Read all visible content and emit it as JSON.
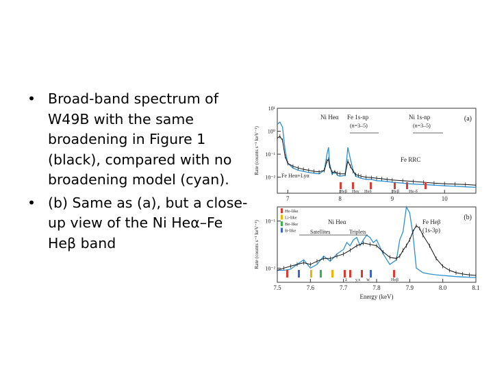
{
  "slide": {
    "bullets": [
      "Broad-band spectrum of W49B with the same broadening in Figure 1 (black), compared with no broadening model (cyan).",
      "(b) Same as (a), but a close-up view of the Ni Heα–Fe Heβ band"
    ],
    "bullet_glyph": "•"
  },
  "chart_data": [
    {
      "type": "line",
      "panel_label": "(a)",
      "ylabel": "Rate (counts s⁻¹ keV⁻¹)",
      "xlim": [
        6.8,
        10.6
      ],
      "ylim": [
        0.002,
        10
      ],
      "yscale": "log",
      "xticks": [
        "7",
        "8",
        "9",
        "10"
      ],
      "xtick_values": [
        7,
        8,
        9,
        10
      ],
      "yticks": [
        "10¹",
        "10⁰",
        "10⁻¹",
        "10⁻²"
      ],
      "ytick_values": [
        10,
        1,
        0.1,
        0.01
      ],
      "annotations": [
        "Ni Heα",
        "Fe 1s-np",
        "(n=3–5)",
        "Ni 1s-np",
        "(n=3–5)",
        "Fe RRC",
        "Fe Heα+Lyα",
        "Heβ",
        "Heγ",
        "Heδ",
        "Heβ",
        "He-δ"
      ],
      "series": [
        {
          "color": "#2b8fcf",
          "x": [
            6.8,
            6.85,
            6.9,
            6.95,
            7.0,
            7.1,
            7.2,
            7.3,
            7.4,
            7.5,
            7.6,
            7.7,
            7.75,
            7.78,
            7.8,
            7.85,
            7.9,
            7.95,
            8.0,
            8.1,
            8.15,
            8.2,
            8.25,
            8.3,
            8.35,
            8.4,
            8.5,
            8.6,
            8.7,
            8.8,
            8.9,
            9.0,
            9.2,
            9.4,
            9.6,
            9.8,
            10.0,
            10.2,
            10.4,
            10.6
          ],
          "values": [
            2.0,
            2.5,
            1.5,
            0.15,
            0.04,
            0.025,
            0.02,
            0.018,
            0.016,
            0.015,
            0.014,
            0.02,
            0.1,
            0.2,
            0.04,
            0.013,
            0.018,
            0.012,
            0.011,
            0.012,
            0.2,
            0.06,
            0.02,
            0.011,
            0.01,
            0.009,
            0.008,
            0.008,
            0.007,
            0.0068,
            0.0065,
            0.006,
            0.0055,
            0.005,
            0.0048,
            0.0045,
            0.0042,
            0.004,
            0.0038,
            0.0036
          ]
        },
        {
          "color": "#111111",
          "x": [
            6.8,
            6.85,
            6.9,
            6.95,
            7.0,
            7.1,
            7.2,
            7.3,
            7.4,
            7.5,
            7.6,
            7.7,
            7.75,
            7.78,
            7.8,
            7.85,
            7.9,
            7.95,
            8.0,
            8.1,
            8.15,
            8.2,
            8.25,
            8.3,
            8.35,
            8.4,
            8.5,
            8.6,
            8.7,
            8.8,
            8.9,
            9.0,
            9.2,
            9.4,
            9.6,
            9.8,
            10.0,
            10.2,
            10.4,
            10.6
          ],
          "values": [
            0.5,
            0.6,
            0.4,
            0.08,
            0.04,
            0.03,
            0.025,
            0.022,
            0.02,
            0.018,
            0.017,
            0.02,
            0.05,
            0.06,
            0.03,
            0.016,
            0.017,
            0.015,
            0.014,
            0.014,
            0.05,
            0.03,
            0.018,
            0.013,
            0.012,
            0.011,
            0.01,
            0.0095,
            0.009,
            0.0085,
            0.008,
            0.0075,
            0.007,
            0.0065,
            0.006,
            0.0055,
            0.0052,
            0.005,
            0.0048,
            0.0045
          ]
        }
      ]
    },
    {
      "type": "line",
      "panel_label": "(b)",
      "xlabel": "Energy (keV)",
      "ylabel": "Rate (counts s⁻¹ keV⁻¹)",
      "xlim": [
        7.5,
        8.1
      ],
      "ylim": [
        0.005,
        0.2
      ],
      "yscale": "log",
      "xticks": [
        "7.5",
        "7.6",
        "7.7",
        "7.8",
        "7.9",
        "8.0",
        "8.1"
      ],
      "xtick_values": [
        7.5,
        7.6,
        7.7,
        7.8,
        7.9,
        8.0,
        8.1
      ],
      "yticks": [
        "10⁻¹",
        "10⁻²"
      ],
      "ytick_values": [
        0.1,
        0.01
      ],
      "legend": [
        "He-like",
        "Li-like",
        "Be-like",
        "B-like"
      ],
      "legend_colors": [
        "#e03a2f",
        "#f0b400",
        "#38b44a",
        "#3a66c9"
      ],
      "annotations": [
        "Ni Heα",
        "Satellites",
        "Triplets",
        "Fe Heβ",
        "(1s-3p)",
        "z",
        "y,x",
        "w",
        "Heβ"
      ],
      "series": [
        {
          "color": "#2b8fcf",
          "x": [
            7.5,
            7.52,
            7.54,
            7.56,
            7.58,
            7.6,
            7.62,
            7.64,
            7.66,
            7.68,
            7.7,
            7.71,
            7.72,
            7.73,
            7.74,
            7.75,
            7.76,
            7.77,
            7.78,
            7.79,
            7.8,
            7.82,
            7.84,
            7.86,
            7.87,
            7.88,
            7.89,
            7.9,
            7.91,
            7.92,
            7.94,
            7.96,
            7.98,
            8.0,
            8.02,
            8.04,
            8.06,
            8.08,
            8.1
          ],
          "values": [
            0.009,
            0.009,
            0.0095,
            0.012,
            0.015,
            0.01,
            0.012,
            0.018,
            0.014,
            0.02,
            0.025,
            0.035,
            0.03,
            0.04,
            0.045,
            0.03,
            0.04,
            0.05,
            0.045,
            0.035,
            0.04,
            0.02,
            0.012,
            0.015,
            0.04,
            0.06,
            0.2,
            0.15,
            0.05,
            0.01,
            0.008,
            0.0075,
            0.0072,
            0.007,
            0.0068,
            0.0066,
            0.0065,
            0.0064,
            0.0063
          ]
        },
        {
          "color": "#111111",
          "x": [
            7.5,
            7.52,
            7.54,
            7.56,
            7.58,
            7.6,
            7.62,
            7.64,
            7.66,
            7.68,
            7.7,
            7.72,
            7.74,
            7.76,
            7.78,
            7.8,
            7.82,
            7.84,
            7.86,
            7.87,
            7.88,
            7.89,
            7.9,
            7.91,
            7.92,
            7.93,
            7.94,
            7.96,
            7.98,
            8.0,
            8.02,
            8.04,
            8.06,
            8.08,
            8.1
          ],
          "values": [
            0.009,
            0.01,
            0.011,
            0.012,
            0.013,
            0.012,
            0.014,
            0.016,
            0.016,
            0.018,
            0.02,
            0.024,
            0.03,
            0.034,
            0.032,
            0.03,
            0.022,
            0.017,
            0.016,
            0.018,
            0.024,
            0.03,
            0.04,
            0.06,
            0.08,
            0.07,
            0.05,
            0.03,
            0.016,
            0.011,
            0.009,
            0.008,
            0.0075,
            0.0072,
            0.007
          ]
        }
      ]
    }
  ]
}
